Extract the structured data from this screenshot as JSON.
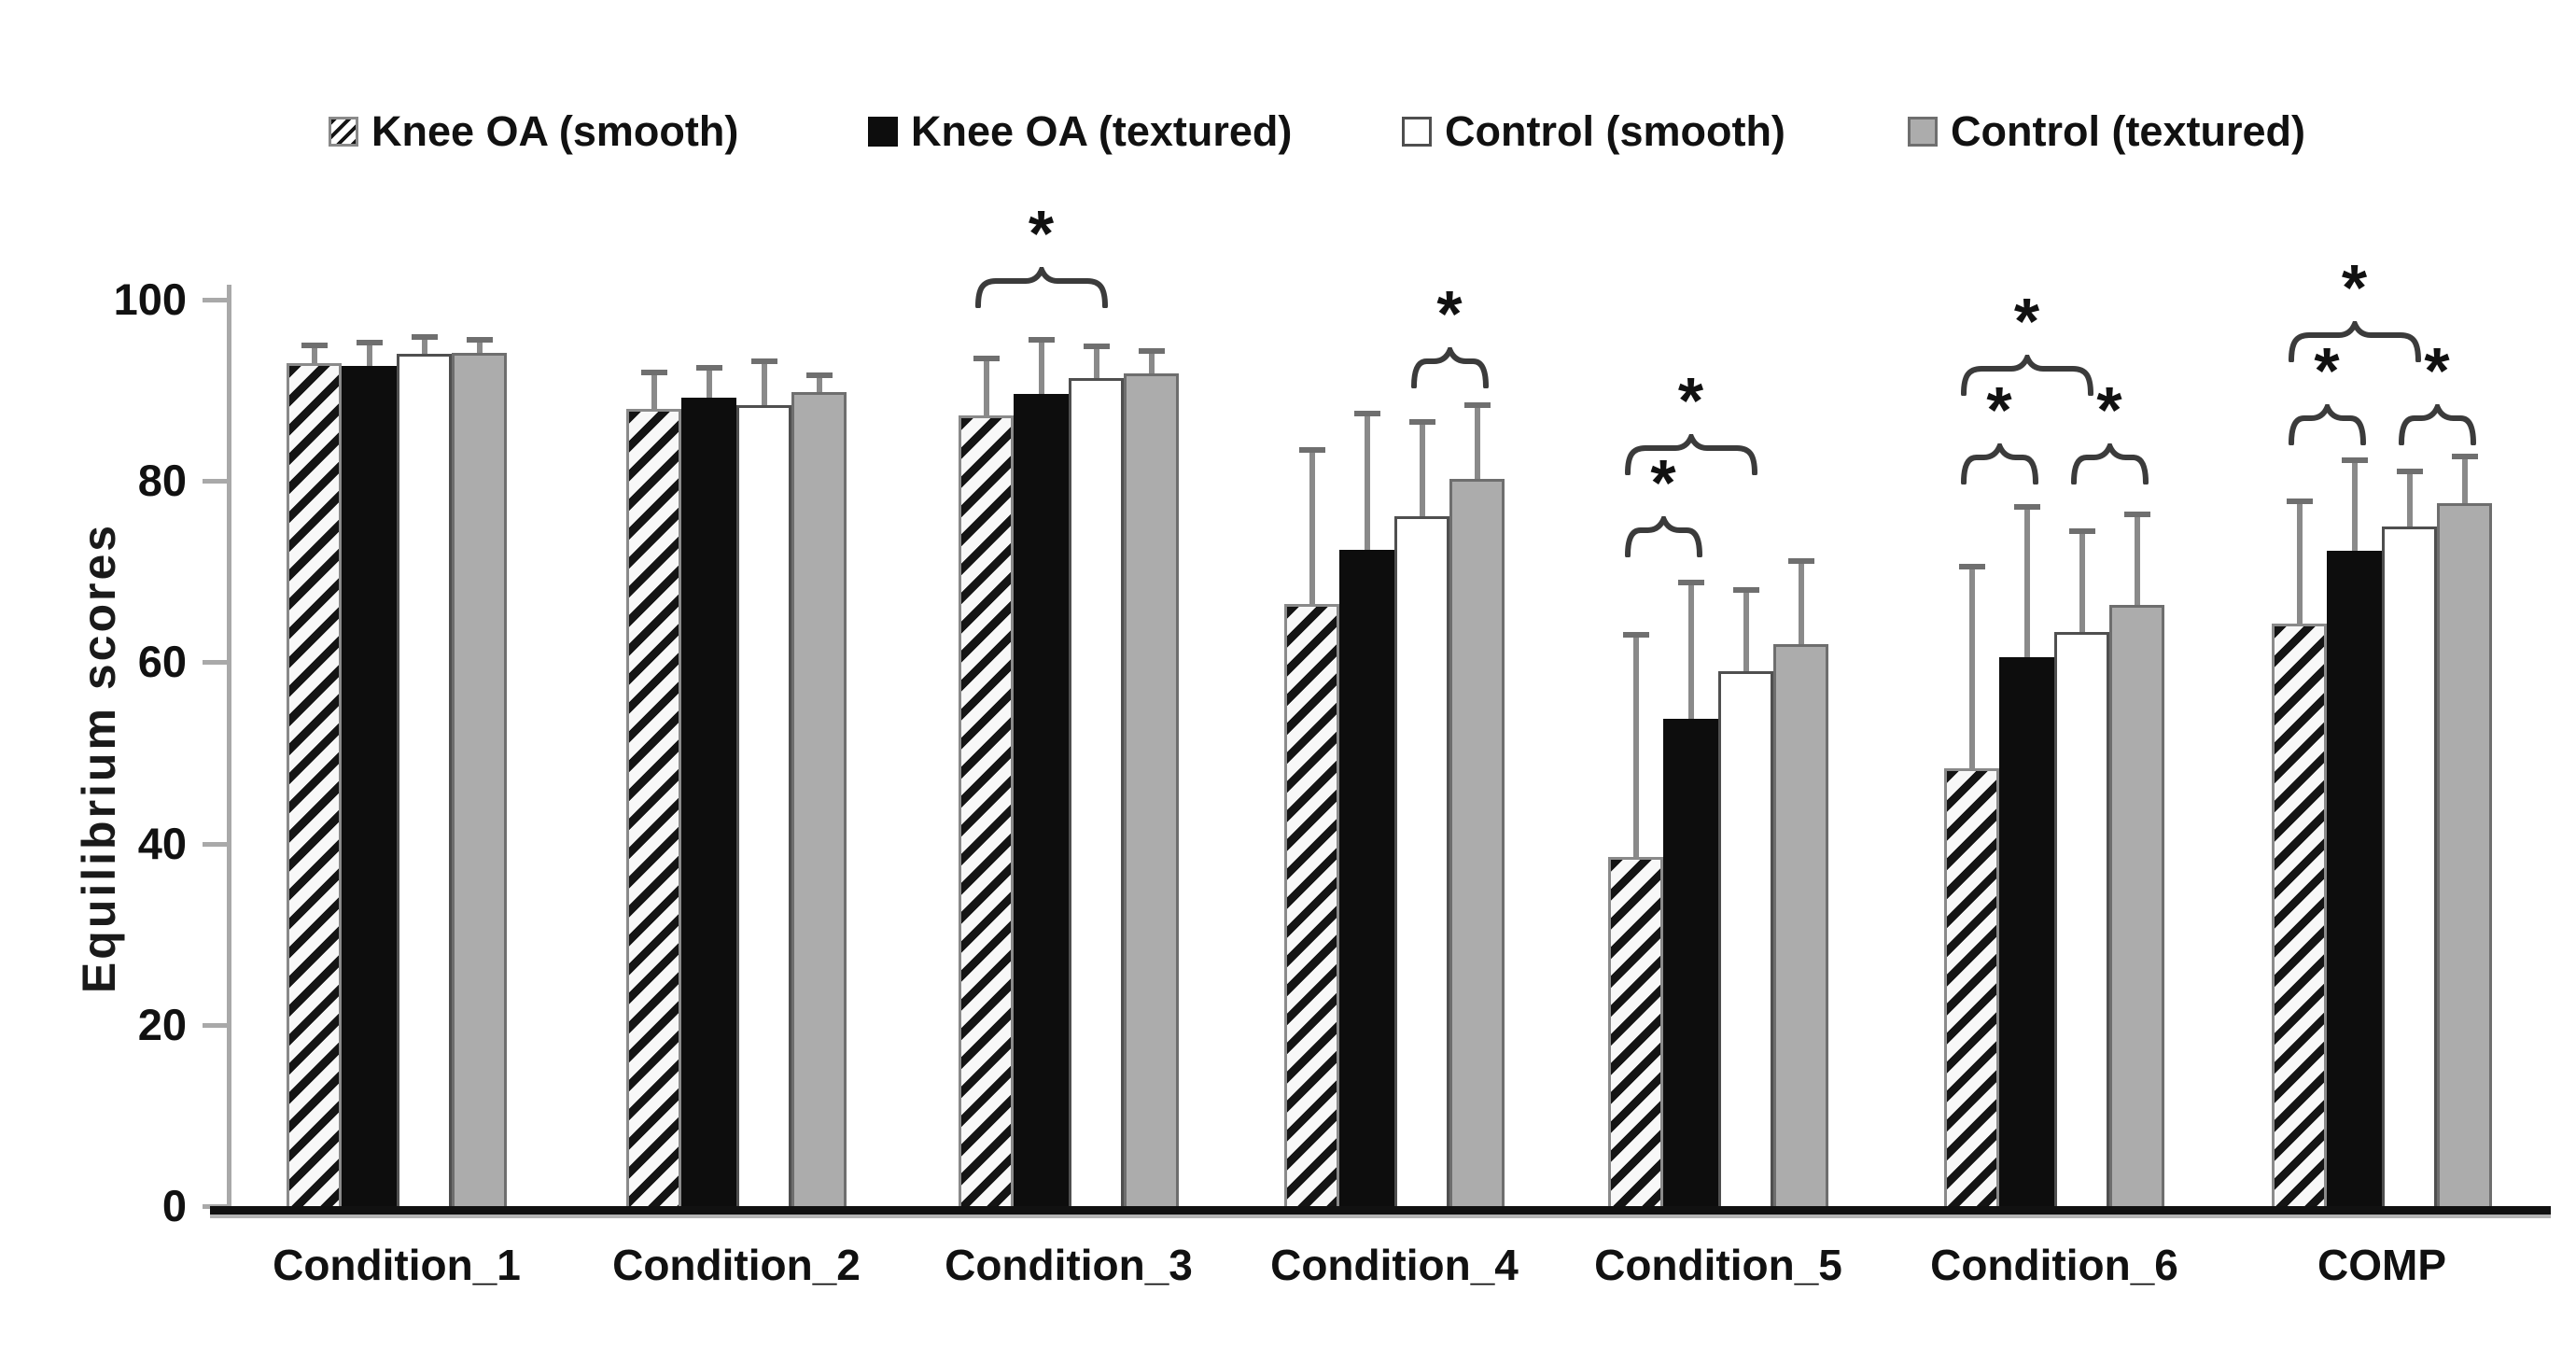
{
  "legend": {
    "items": [
      {
        "label": "Knee OA (smooth)",
        "swatch": "hatched",
        "x": 352
      },
      {
        "label": "Knee OA (textured)",
        "swatch": "black",
        "x": 930
      },
      {
        "label": "Control (smooth)",
        "swatch": "white",
        "x": 1502
      },
      {
        "label": "Control (textured)",
        "swatch": "gray",
        "x": 2044
      }
    ]
  },
  "y_axis": {
    "label": "Equilibrium scores",
    "ticks": [
      0,
      20,
      40,
      60,
      80,
      100
    ]
  },
  "chart_data": {
    "type": "bar",
    "title": "",
    "xlabel": "",
    "ylabel": "Equilibrium scores",
    "ylim": [
      0,
      100
    ],
    "grid": false,
    "legend_position": "top",
    "categories": [
      "Condition_1",
      "Condition_2",
      "Condition_3",
      "Condition_4",
      "Condition_5",
      "Condition_6",
      "COMP"
    ],
    "series": [
      {
        "name": "Knee OA (smooth)",
        "style": "hatched",
        "values": [
          93.0,
          88.0,
          87.2,
          66.4,
          38.5,
          48.3,
          64.3
        ],
        "errors": [
          2.0,
          4.0,
          6.3,
          17.0,
          24.5,
          22.2,
          13.5
        ]
      },
      {
        "name": "Knee OA (textured)",
        "style": "black",
        "values": [
          92.7,
          89.2,
          89.6,
          72.4,
          53.8,
          60.6,
          72.3
        ],
        "errors": [
          2.6,
          3.3,
          6.0,
          15.0,
          15.0,
          16.5,
          10.0
        ]
      },
      {
        "name": "Control (smooth)",
        "style": "white",
        "values": [
          94.0,
          88.4,
          91.3,
          76.1,
          59.0,
          63.3,
          75.0
        ],
        "errors": [
          1.9,
          4.8,
          3.6,
          10.4,
          9.0,
          11.2,
          6.0
        ]
      },
      {
        "name": "Control (textured)",
        "style": "gray",
        "values": [
          94.1,
          89.8,
          91.9,
          80.2,
          62.0,
          66.3,
          77.5
        ],
        "errors": [
          1.5,
          1.9,
          2.4,
          8.2,
          9.2,
          10.0,
          5.2
        ]
      }
    ],
    "significance": [
      {
        "group": 2,
        "from": 0,
        "to": 2,
        "symbol": "*",
        "brace_y": 286,
        "ast_y": 250
      },
      {
        "group": 3,
        "from": 2,
        "to": 3,
        "symbol": "*",
        "brace_y": 372,
        "ast_y": 336
      },
      {
        "group": 4,
        "from": 0,
        "to": 1,
        "symbol": "*",
        "brace_y": 553,
        "ast_y": 517
      },
      {
        "group": 4,
        "from": 0,
        "to": 2,
        "symbol": "*",
        "brace_y": 465,
        "ast_y": 429
      },
      {
        "group": 5,
        "from": 0,
        "to": 1,
        "symbol": "*",
        "brace_y": 475,
        "ast_y": 439
      },
      {
        "group": 5,
        "from": 2,
        "to": 3,
        "symbol": "*",
        "brace_y": 475,
        "ast_y": 439
      },
      {
        "group": 5,
        "from": 0,
        "to": 2,
        "symbol": "*",
        "brace_y": 380,
        "ast_y": 344
      },
      {
        "group": 6,
        "from": 0,
        "to": 1,
        "symbol": "*",
        "brace_y": 433,
        "ast_y": 397
      },
      {
        "group": 6,
        "from": 2,
        "to": 3,
        "symbol": "*",
        "brace_y": 433,
        "ast_y": 397
      },
      {
        "group": 6,
        "from": 0,
        "to": 2,
        "symbol": "*",
        "brace_y": 344,
        "ast_y": 308
      }
    ]
  },
  "colors": {
    "bar_black": "#0d0d0d",
    "bar_gray": "#acacac",
    "bar_white": "#ffffff",
    "bar_border_gray": "#6e6e6e",
    "bar_border_white": "#4f4f4f",
    "hatch_dark": "#141414",
    "error_bar": "#8a8a8a",
    "axis_gray": "#a9a9a9",
    "axis_black": "#111111",
    "brace": "#3b3b3b",
    "text": "#111111"
  }
}
